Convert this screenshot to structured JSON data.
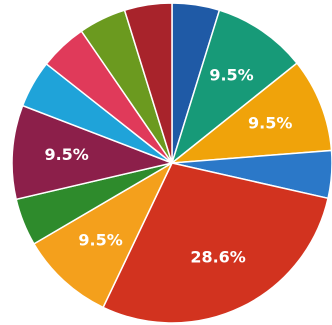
{
  "chart_data": {
    "type": "pie",
    "title": "",
    "slices": [
      {
        "value": 4.8,
        "color": "#1f5aa6",
        "label": ""
      },
      {
        "value": 9.5,
        "color": "#179a78",
        "label": "9.5%"
      },
      {
        "value": 9.5,
        "color": "#f0a30a",
        "label": "9.5%"
      },
      {
        "value": 4.8,
        "color": "#2b78c8",
        "label": ""
      },
      {
        "value": 28.6,
        "color": "#d2331f",
        "label": "28.6%"
      },
      {
        "value": 9.5,
        "color": "#f4a01c",
        "label": "9.5%"
      },
      {
        "value": 4.8,
        "color": "#2e8b2c",
        "label": ""
      },
      {
        "value": 9.5,
        "color": "#8c1f4a",
        "label": "9.5%"
      },
      {
        "value": 4.8,
        "color": "#1fa3d9",
        "label": ""
      },
      {
        "value": 4.8,
        "color": "#e03a5a",
        "label": ""
      },
      {
        "value": 4.8,
        "color": "#6b9a1f",
        "label": ""
      },
      {
        "value": 4.8,
        "color": "#a8232b",
        "label": ""
      }
    ]
  }
}
